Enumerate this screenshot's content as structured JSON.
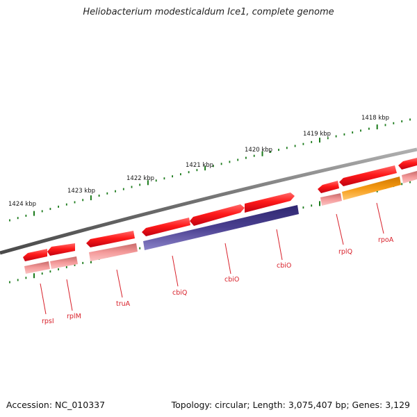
{
  "title": "Heliobacterium modesticaldum Ice1, complete genome",
  "footer": {
    "accession": "Accession: NC_010337",
    "summary": "Topology: circular; Length: 3,075,407 bp; Genes: 3,129"
  },
  "scale_labels": [
    "1424 kbp",
    "1423 kbp",
    "1422 kbp",
    "1421 kbp",
    "1420 kbp",
    "1419 kbp",
    "1418 kbp"
  ],
  "gene_labels": [
    "rpsI",
    "rplM",
    "truA",
    "cbiQ",
    "cbiO",
    "cbiO",
    "rplQ",
    "rpoA"
  ],
  "colors": {
    "backbone": "#7a7a7a",
    "gene": "#e8101a",
    "cds": "#f08a8a",
    "cbi_cds": "#4a4090",
    "rpoA_cds": "#f59a14",
    "ticks": "#1a7a1a",
    "label": "#d8202a"
  }
}
